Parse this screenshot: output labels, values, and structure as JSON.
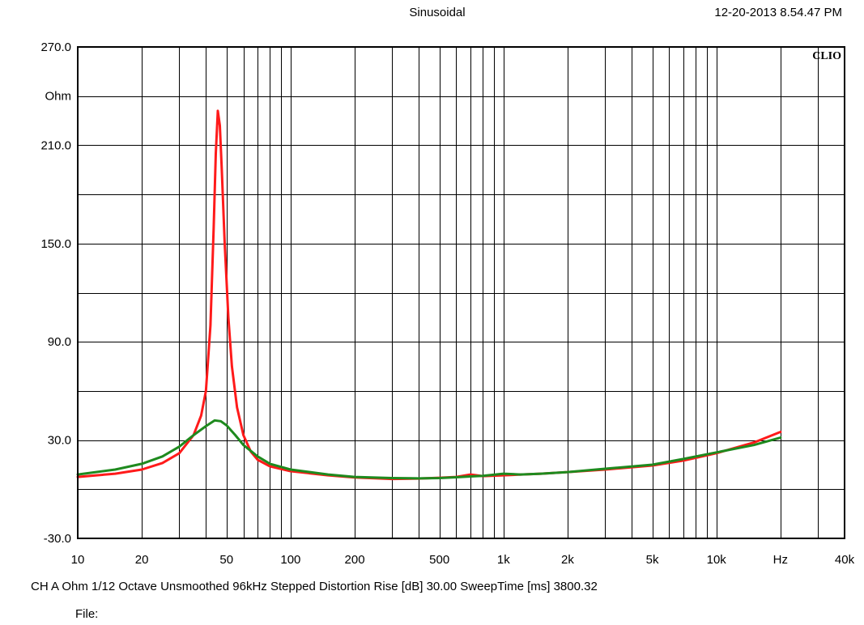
{
  "header": {
    "title": "Sinusoidal",
    "timestamp": "12-20-2013 8.54.47 PM",
    "logo": "CLIO"
  },
  "footer": {
    "line1": "CH A   Ohm    1/12 Octave    Unsmoothed    96kHz    Stepped     Distortion Rise [dB] 30.00     SweepTime [ms] 3800.32",
    "file_label": "File:"
  },
  "colors": {
    "series_1": "#ff1a1a",
    "series_2": "#1e8a1e",
    "grid": "#000000"
  },
  "chart_data": {
    "type": "line",
    "x_scale": "log",
    "xlim": [
      10,
      40000
    ],
    "ylim": [
      -30,
      270
    ],
    "ylabel": "Ohm",
    "xlabel": "Hz",
    "grid": true,
    "x_tick_labels": [
      {
        "value": 10,
        "label": "10"
      },
      {
        "value": 20,
        "label": "20"
      },
      {
        "value": 50,
        "label": "50"
      },
      {
        "value": 100,
        "label": "100"
      },
      {
        "value": 200,
        "label": "200"
      },
      {
        "value": 500,
        "label": "500"
      },
      {
        "value": 1000,
        "label": "1k"
      },
      {
        "value": 2000,
        "label": "2k"
      },
      {
        "value": 5000,
        "label": "5k"
      },
      {
        "value": 10000,
        "label": "10k"
      },
      {
        "value": 20000,
        "label": "Hz"
      },
      {
        "value": 40000,
        "label": "40k"
      }
    ],
    "y_tick_labels": [
      {
        "value": 270,
        "label": "270.0"
      },
      {
        "value": 240,
        "label": "Ohm"
      },
      {
        "value": 210,
        "label": "210.0"
      },
      {
        "value": 150,
        "label": "150.0"
      },
      {
        "value": 90,
        "label": "90.0"
      },
      {
        "value": 30,
        "label": "30.0"
      },
      {
        "value": -30,
        "label": "-30.0"
      }
    ],
    "y_grid_values": [
      0,
      30,
      60,
      90,
      120,
      150,
      180,
      210,
      240
    ],
    "series": [
      {
        "color": "#ff1a1a",
        "points": [
          [
            10,
            7.5
          ],
          [
            15,
            9.5
          ],
          [
            20,
            12
          ],
          [
            25,
            16
          ],
          [
            30,
            22
          ],
          [
            35,
            33
          ],
          [
            38,
            45
          ],
          [
            40,
            60
          ],
          [
            42,
            100
          ],
          [
            43.5,
            160
          ],
          [
            44.5,
            205
          ],
          [
            45.5,
            231
          ],
          [
            46.5,
            222
          ],
          [
            47.5,
            195
          ],
          [
            49,
            150
          ],
          [
            51,
            105
          ],
          [
            53,
            75
          ],
          [
            56,
            50
          ],
          [
            60,
            33
          ],
          [
            65,
            23
          ],
          [
            70,
            18
          ],
          [
            80,
            14
          ],
          [
            100,
            11
          ],
          [
            150,
            8.5
          ],
          [
            200,
            7.2
          ],
          [
            300,
            6.3
          ],
          [
            400,
            6.5
          ],
          [
            500,
            7
          ],
          [
            600,
            7.5
          ],
          [
            700,
            9
          ],
          [
            800,
            8
          ],
          [
            1000,
            8.5
          ],
          [
            1500,
            9.5
          ],
          [
            2000,
            10.5
          ],
          [
            3000,
            12
          ],
          [
            5000,
            14.5
          ],
          [
            7000,
            17.5
          ],
          [
            10000,
            22
          ],
          [
            15000,
            28.5
          ],
          [
            20000,
            35
          ]
        ]
      },
      {
        "color": "#1e8a1e",
        "points": [
          [
            10,
            9
          ],
          [
            15,
            12
          ],
          [
            20,
            15.5
          ],
          [
            25,
            20
          ],
          [
            30,
            26
          ],
          [
            35,
            33
          ],
          [
            40,
            38.5
          ],
          [
            44,
            42
          ],
          [
            47,
            41.5
          ],
          [
            50,
            39
          ],
          [
            55,
            33
          ],
          [
            60,
            27
          ],
          [
            70,
            20
          ],
          [
            80,
            15.5
          ],
          [
            100,
            12
          ],
          [
            150,
            9
          ],
          [
            200,
            7.5
          ],
          [
            300,
            6.8
          ],
          [
            400,
            6.6
          ],
          [
            500,
            6.8
          ],
          [
            600,
            7.3
          ],
          [
            700,
            7.8
          ],
          [
            800,
            8.2
          ],
          [
            1000,
            9.5
          ],
          [
            1200,
            9
          ],
          [
            1500,
            9.5
          ],
          [
            2000,
            10.5
          ],
          [
            3000,
            12.5
          ],
          [
            5000,
            15
          ],
          [
            7000,
            18.5
          ],
          [
            10000,
            22.5
          ],
          [
            15000,
            27
          ],
          [
            20000,
            31.5
          ]
        ]
      }
    ]
  }
}
